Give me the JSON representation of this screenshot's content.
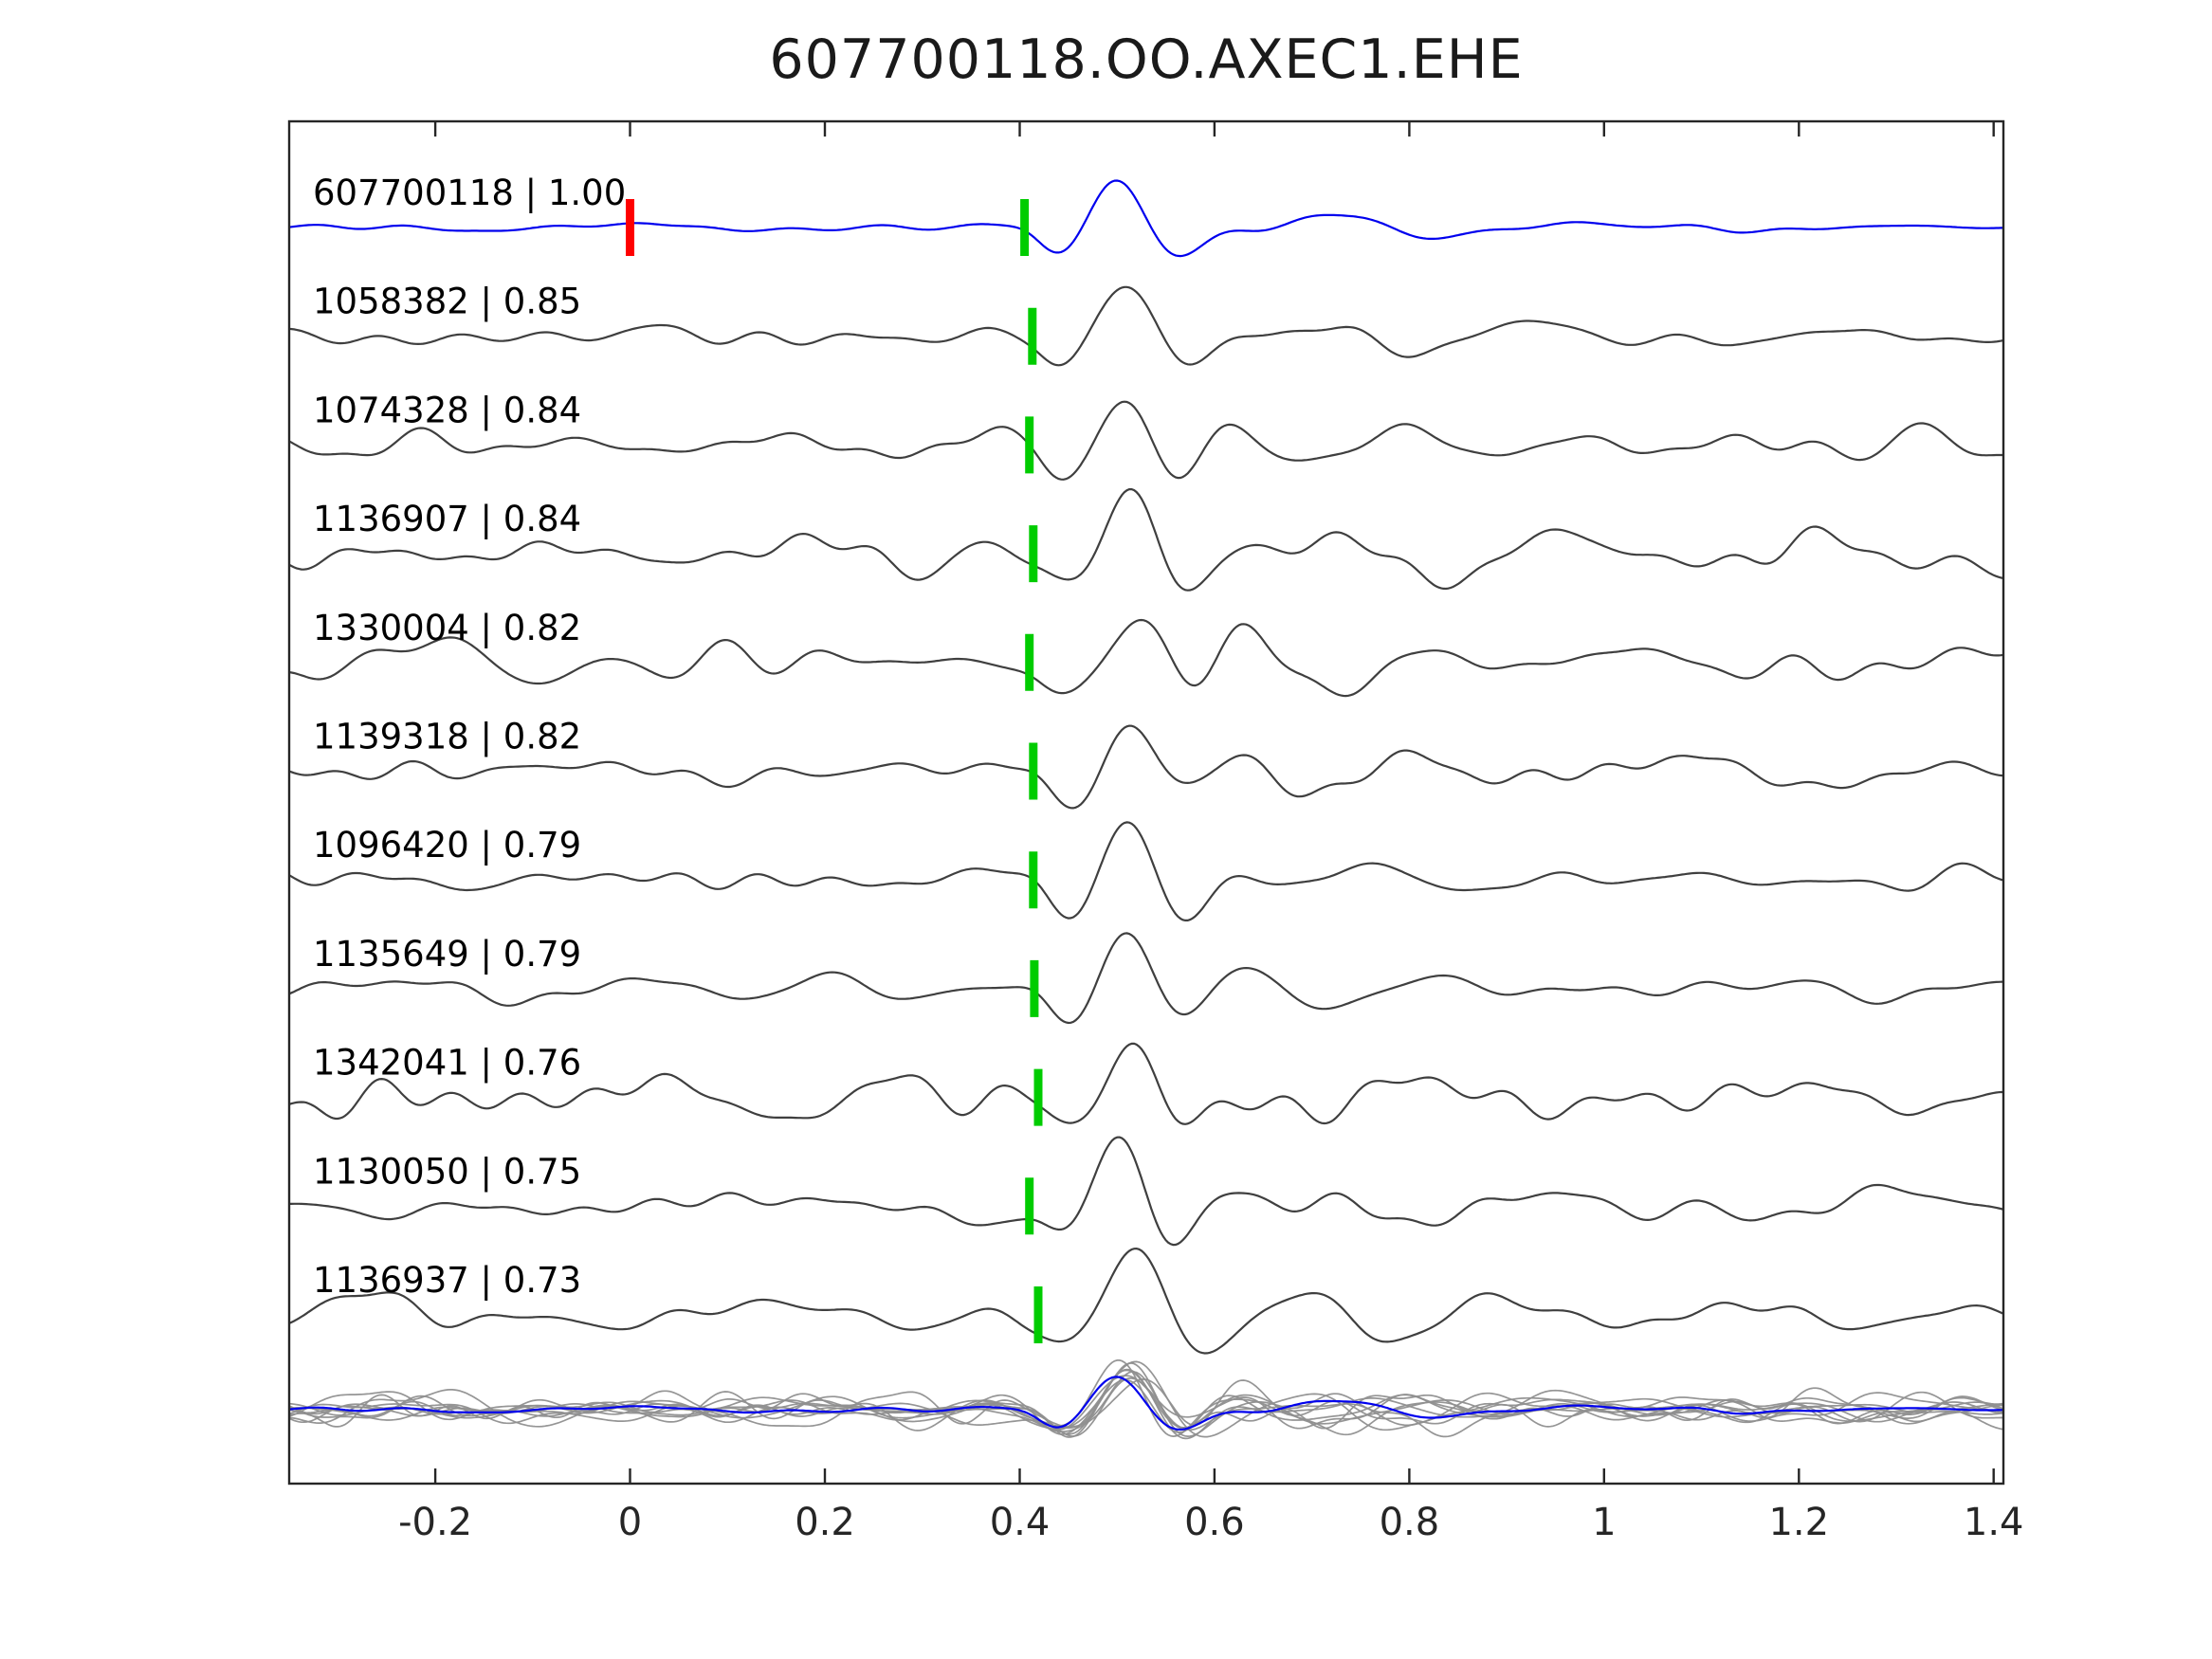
{
  "title": "607700118.OO.AXEC1.EHE",
  "colors": {
    "template": "#0000ee",
    "member": "#3f3f3f",
    "overlay_member": "#8f8f8f",
    "pick_green": "#00cc00",
    "pick_red": "#ff0000",
    "axis": "#262626",
    "label_text": "#000000",
    "background": "#ffffff"
  },
  "chart_data": {
    "type": "line",
    "title": "607700118.OO.AXEC1.EHE",
    "xlabel": "",
    "ylabel": "",
    "grid": false,
    "legend": "none",
    "xlim": [
      -0.35,
      1.41
    ],
    "x_ticks": [
      -0.2,
      0,
      0.2,
      0.4,
      0.6,
      0.8,
      1,
      1.2,
      1.4
    ],
    "x_tick_labels": [
      "-0.2",
      "0",
      "0.2",
      "0.4",
      "0.6",
      "0.8",
      "1",
      "1.2",
      "1.4"
    ],
    "traces": [
      {
        "id": "607700118",
        "similarity": "1.00",
        "label": "607700118 | 1.00",
        "role": "template",
        "pick_time": 0.405,
        "extra_marker": {
          "time": 0.0,
          "color_key": "pick_red"
        },
        "noise_level": 2,
        "amplitude": 48,
        "seed": 101
      },
      {
        "id": "1058382",
        "similarity": "0.85",
        "label": "1058382 | 0.85",
        "role": "member",
        "pick_time": 0.413,
        "noise_level": 6,
        "amplitude": 55,
        "seed": 202
      },
      {
        "id": "1074328",
        "similarity": "0.84",
        "label": "1074328 | 0.84",
        "role": "member",
        "pick_time": 0.41,
        "noise_level": 7,
        "amplitude": 57,
        "seed": 303
      },
      {
        "id": "1136907",
        "similarity": "0.84",
        "label": "1136907 | 0.84",
        "role": "member",
        "pick_time": 0.414,
        "noise_level": 11,
        "amplitude": 55,
        "seed": 404
      },
      {
        "id": "1330004",
        "similarity": "0.82",
        "label": "1330004 | 0.82",
        "role": "member",
        "pick_time": 0.41,
        "noise_level": 12,
        "amplitude": 54,
        "seed": 505
      },
      {
        "id": "1139318",
        "similarity": "0.82",
        "label": "1139318 | 0.82",
        "role": "member",
        "pick_time": 0.414,
        "noise_level": 8,
        "amplitude": 53,
        "seed": 606
      },
      {
        "id": "1096420",
        "similarity": "0.79",
        "label": "1096420 | 0.79",
        "role": "member",
        "pick_time": 0.414,
        "noise_level": 6,
        "amplitude": 62,
        "seed": 707
      },
      {
        "id": "1135649",
        "similarity": "0.79",
        "label": "1135649 | 0.79",
        "role": "member",
        "pick_time": 0.415,
        "noise_level": 7,
        "amplitude": 56,
        "seed": 808
      },
      {
        "id": "1342041",
        "similarity": "0.76",
        "label": "1342041 | 0.76",
        "role": "member",
        "pick_time": 0.419,
        "noise_level": 11,
        "amplitude": 57,
        "seed": 909
      },
      {
        "id": "1130050",
        "similarity": "0.75",
        "label": "1130050 | 0.75",
        "role": "member",
        "pick_time": 0.41,
        "noise_level": 8,
        "amplitude": 58,
        "seed": 1010
      },
      {
        "id": "1136937",
        "similarity": "0.73",
        "label": "1136937 | 0.73",
        "role": "member",
        "pick_time": 0.419,
        "noise_level": 8,
        "amplitude": 50,
        "seed": 1111
      }
    ],
    "overlay": {
      "description": "all member traces superimposed in gray with template trace in blue",
      "amplitude_scale": 0.7,
      "noise_scale": 0.8
    }
  }
}
